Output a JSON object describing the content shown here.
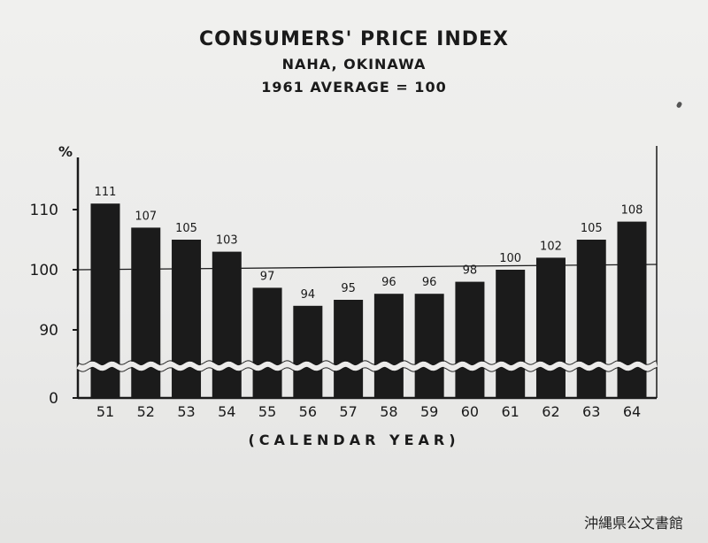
{
  "chart_data": {
    "type": "bar",
    "title": "CONSUMERS' PRICE INDEX",
    "subtitle_lines": [
      "NAHA, OKINAWA",
      "1961 AVERAGE = 100"
    ],
    "xlabel": "(CALENDAR YEAR)",
    "ylabel": "%",
    "categories": [
      "51",
      "52",
      "53",
      "54",
      "55",
      "56",
      "57",
      "58",
      "59",
      "60",
      "61",
      "62",
      "63",
      "64"
    ],
    "values": [
      111,
      107,
      105,
      103,
      97,
      94,
      95,
      96,
      96,
      98,
      100,
      102,
      105,
      108
    ],
    "y_ticks": [
      "110",
      "100",
      "90",
      "0"
    ],
    "reference_line": 100,
    "axis_break": true,
    "bar_color": "#1b1b1b",
    "grid": false
  },
  "archive_stamp": "沖縄県公文書館"
}
